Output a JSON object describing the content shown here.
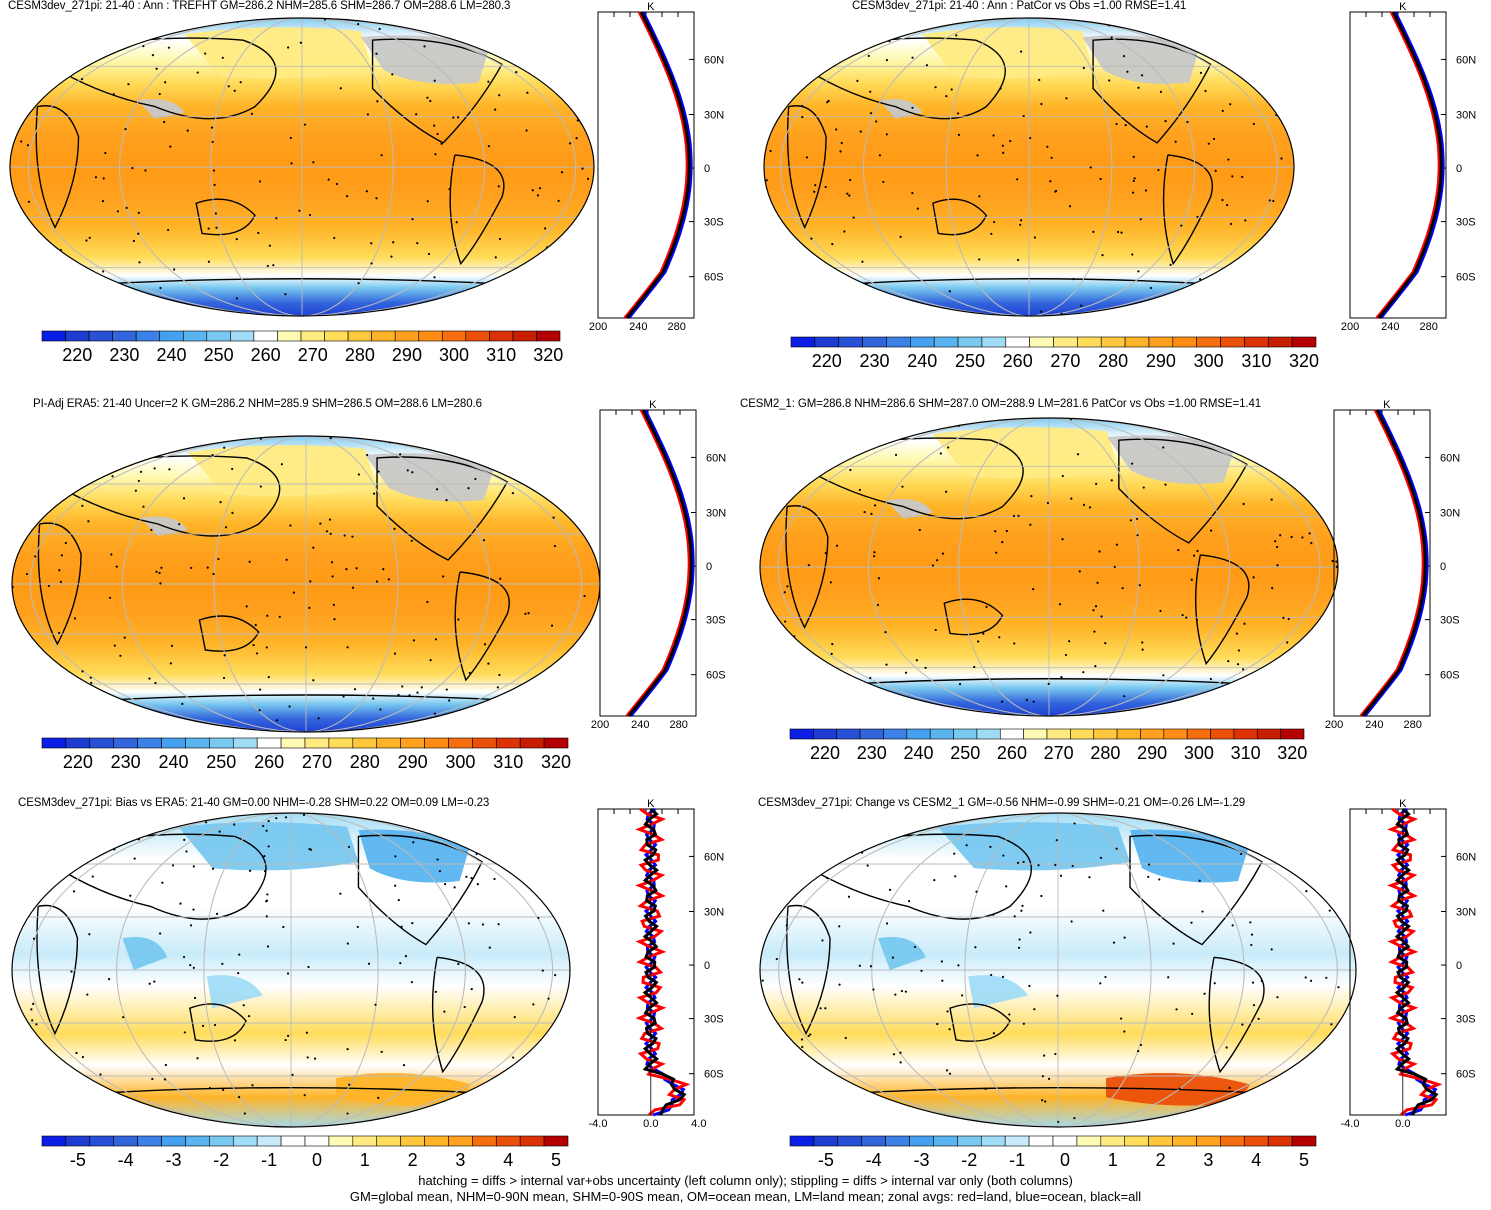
{
  "panels": [
    {
      "id": "p1",
      "title": "CESM3dev_271pi: 21-40 : Ann : TREFHT GM=286.2 NHM=285.6 SHM=286.7 OM=288.6 LM=280.3",
      "kind": "abs",
      "colorbar": {
        "labels": [
          "220",
          "230",
          "240",
          "250",
          "260",
          "270",
          "280",
          "290",
          "300",
          "310",
          "320"
        ]
      },
      "zonal": {
        "units": "K",
        "xticks": [
          "200",
          "240",
          "280"
        ],
        "yticks": [
          "60N",
          "30N",
          "0",
          "30S",
          "60S"
        ]
      }
    },
    {
      "id": "p2",
      "title": "CESM3dev_271pi: 21-40 : Ann : PatCor vs Obs =1.00 RMSE=1.41",
      "kind": "abs",
      "colorbar": {
        "labels": [
          "220",
          "230",
          "240",
          "250",
          "260",
          "270",
          "280",
          "290",
          "300",
          "310",
          "320"
        ]
      },
      "zonal": {
        "units": "K",
        "xticks": [
          "200",
          "240",
          "280"
        ],
        "yticks": [
          "60N",
          "30N",
          "0",
          "30S",
          "60S"
        ]
      }
    },
    {
      "id": "p3",
      "title": "PI-Adj ERA5: 21-40 Uncer=2 K GM=286.2 NHM=285.9 SHM=286.5 OM=288.6 LM=280.6",
      "kind": "abs",
      "colorbar": {
        "labels": [
          "220",
          "230",
          "240",
          "250",
          "260",
          "270",
          "280",
          "290",
          "300",
          "310",
          "320"
        ]
      },
      "zonal": {
        "units": "K",
        "xticks": [
          "200",
          "240",
          "280"
        ],
        "yticks": [
          "60N",
          "30N",
          "0",
          "30S",
          "60S"
        ]
      }
    },
    {
      "id": "p4",
      "title": "CESM2_1: GM=286.8 NHM=286.6 SHM=287.0 OM=288.9 LM=281.6 PatCor vs Obs =1.00 RMSE=1.41",
      "kind": "abs",
      "colorbar": {
        "labels": [
          "220",
          "230",
          "240",
          "250",
          "260",
          "270",
          "280",
          "290",
          "300",
          "310",
          "320"
        ]
      },
      "zonal": {
        "units": "K",
        "xticks": [
          "200",
          "240",
          "280"
        ],
        "yticks": [
          "60N",
          "30N",
          "0",
          "30S",
          "60S"
        ]
      }
    },
    {
      "id": "p5",
      "title": "CESM3dev_271pi: Bias vs ERA5: 21-40 GM=0.00 NHM=-0.28 SHM=0.22 OM=0.09 LM=-0.23",
      "kind": "diff",
      "colorbar": {
        "labels": [
          "-5",
          "-4",
          "-3",
          "-2",
          "-1",
          "0",
          "1",
          "2",
          "3",
          "4",
          "5"
        ]
      },
      "zonal": {
        "units": "K",
        "xticks": [
          "-4.0",
          "0.0",
          "4.0"
        ],
        "yticks": [
          "60N",
          "30N",
          "0",
          "30S",
          "60S"
        ]
      }
    },
    {
      "id": "p6",
      "title": "CESM3dev_271pi: Change vs CESM2_1 GM=-0.56 NHM=-0.99 SHM=-0.21 OM=-0.26 LM=-1.29",
      "kind": "diff",
      "colorbar": {
        "labels": [
          "-5",
          "-4",
          "-3",
          "-2",
          "-1",
          "0",
          "1",
          "2",
          "3",
          "4",
          "5"
        ]
      },
      "zonal": {
        "units": "K",
        "xticks": [
          "-4.0",
          "0.0"
        ],
        "yticks": [
          "60N",
          "30N",
          "0",
          "30S",
          "60S"
        ]
      }
    }
  ],
  "colors": {
    "abs_scale": [
      "#0a1ee6",
      "#1e3cd2",
      "#2850d7",
      "#3264dc",
      "#3c82e6",
      "#46a0f0",
      "#5ab4f0",
      "#78c8f0",
      "#a0dcf5",
      "#ffffff",
      "#fffab4",
      "#ffeb82",
      "#ffdc5a",
      "#ffc83c",
      "#ffb428",
      "#ffa01e",
      "#ff8c14",
      "#f56e0f",
      "#eb500a",
      "#dc3205",
      "#c81e00",
      "#b40000"
    ],
    "diff_scale": [
      "#0a1ee6",
      "#1e3cd2",
      "#2850d7",
      "#3264dc",
      "#3c82e6",
      "#46a0f0",
      "#5ab4f0",
      "#78c8f0",
      "#a0dcf5",
      "#c8ebfa",
      "#ffffff",
      "#ffffff",
      "#fffab4",
      "#ffeb82",
      "#ffdc5a",
      "#ffc83c",
      "#ffb428",
      "#ffa01e",
      "#f56e0f",
      "#eb500a",
      "#dc3205",
      "#b40000"
    ],
    "land_mask": "#c8c8c8",
    "zonal_land": "#ff0000",
    "zonal_ocean": "#0000ff",
    "zonal_all": "#000000"
  },
  "footer": {
    "line1": "hatching = diffs > internal var+obs uncertainty (left column only); stippling = diffs > internal var only (both columns)",
    "line2": "GM=global mean, NHM=0-90N mean, SHM=0-90S mean, OM=ocean mean, LM=land mean; zonal avgs: red=land, blue=ocean, black=all"
  }
}
